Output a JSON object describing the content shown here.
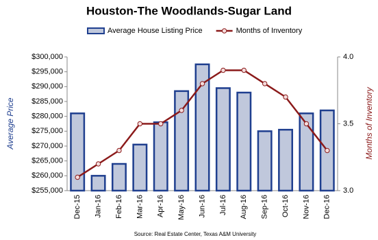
{
  "chart_data": {
    "type": "bar",
    "title": "Houston-The Woodlands-Sugar Land",
    "categories": [
      "Dec-15",
      "Jan-16",
      "Feb-16",
      "Mar-16",
      "Apr-16",
      "May-16",
      "Jun-16",
      "Jul-16",
      "Aug-16",
      "Sep-16",
      "Oct-16",
      "Nov-16",
      "Dec-16"
    ],
    "series": [
      {
        "name": "Average House Listing Price",
        "type": "bar",
        "color": "#c0c8dc",
        "edge_color": "#1f3f8f",
        "values": [
          281000,
          260000,
          264000,
          270500,
          278000,
          288500,
          297500,
          289500,
          288000,
          275000,
          275500,
          281000,
          282000
        ]
      },
      {
        "name": "Months of Inventory",
        "type": "line",
        "axis": "y2",
        "color": "#8b1a1a",
        "values": [
          3.1,
          3.2,
          3.3,
          3.5,
          3.5,
          3.6,
          3.8,
          3.9,
          3.9,
          3.8,
          3.7,
          3.5,
          3.3
        ]
      }
    ],
    "ylabel": "Average Price",
    "y2label": "Months of Inventory",
    "ylim": [
      255000,
      300000
    ],
    "yticks": [
      {
        "value": 255000,
        "label": "$255,000"
      },
      {
        "value": 260000,
        "label": "$260,000"
      },
      {
        "value": 265000,
        "label": "$265,000"
      },
      {
        "value": 270000,
        "label": "$270,000"
      },
      {
        "value": 275000,
        "label": "$275,000"
      },
      {
        "value": 280000,
        "label": "$280,000"
      },
      {
        "value": 285000,
        "label": "$285,000"
      },
      {
        "value": 290000,
        "label": "$290,000"
      },
      {
        "value": 295000,
        "label": "$295,000"
      },
      {
        "value": 300000,
        "label": "$300,000"
      }
    ],
    "y2lim": [
      3.0,
      4.0
    ],
    "y2ticks": [
      {
        "value": 3.0,
        "label": "3.0"
      },
      {
        "value": 3.5,
        "label": "3.5"
      },
      {
        "value": 4.0,
        "label": "4.0"
      }
    ],
    "legend": "top",
    "source": "Source: Real Estate Center, Texas A&M University"
  }
}
